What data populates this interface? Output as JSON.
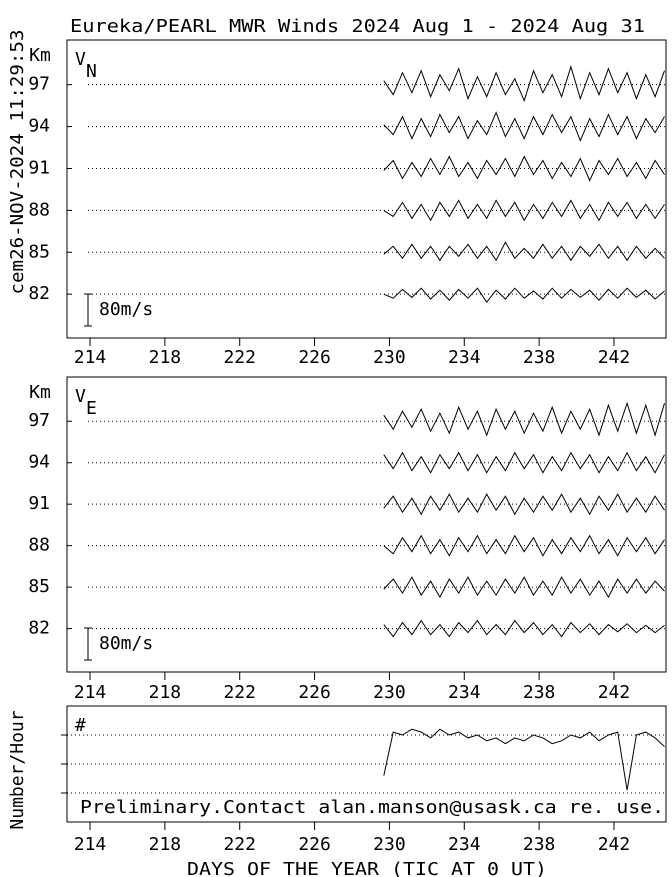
{
  "side_label": "cem26-NOV-2024 11:29:53",
  "chart_data": [
    {
      "type": "line",
      "title": "Eureka/PEARL MWR Winds 2024 Aug  1 - 2024 Aug 31",
      "ylabel": "Km",
      "panel_label": "V",
      "panel_label_sub": "N",
      "xlim": [
        212.77,
        244.78
      ],
      "xticks": [
        214,
        218,
        222,
        226,
        230,
        234,
        238,
        242
      ],
      "ylim": [
        78.86,
        100.2
      ],
      "yticks": [
        82,
        85,
        88,
        91,
        94,
        97
      ],
      "grid": true,
      "scale_bar": {
        "value": 80,
        "label": "80m/s"
      },
      "x": [
        229.7,
        230.2,
        230.7,
        231.2,
        231.7,
        232.2,
        232.7,
        233.2,
        233.7,
        234.2,
        234.7,
        235.2,
        235.7,
        236.2,
        236.7,
        237.2,
        237.7,
        238.2,
        238.7,
        239.2,
        239.7,
        240.2,
        240.7,
        241.2,
        241.7,
        242.2,
        242.7,
        243.2,
        243.7,
        244.2,
        244.7
      ],
      "series": [
        {
          "baseline": 97,
          "color": "#000000",
          "values": [
            10,
            -25,
            30,
            -20,
            35,
            -30,
            25,
            -15,
            40,
            -35,
            20,
            -30,
            30,
            -25,
            15,
            -40,
            35,
            -20,
            25,
            -30,
            45,
            -35,
            30,
            -25,
            40,
            -20,
            30,
            -35,
            25,
            -30,
            35
          ]
        },
        {
          "baseline": 94,
          "color": "#000000",
          "values": [
            5,
            -20,
            25,
            -30,
            20,
            -25,
            30,
            -15,
            25,
            -30,
            15,
            -20,
            35,
            -25,
            20,
            -30,
            25,
            -20,
            30,
            -15,
            25,
            -35,
            20,
            -25,
            30,
            -20,
            25,
            -30,
            20,
            -15,
            25
          ]
        },
        {
          "baseline": 91,
          "color": "#000000",
          "values": [
            -5,
            20,
            -25,
            15,
            -20,
            25,
            -15,
            30,
            -20,
            15,
            -25,
            20,
            -15,
            25,
            -20,
            30,
            -15,
            20,
            -25,
            15,
            -20,
            25,
            -30,
            20,
            -15,
            25,
            -20,
            15,
            -25,
            20,
            -15
          ]
        },
        {
          "baseline": 88,
          "color": "#000000",
          "values": [
            0,
            -15,
            20,
            -20,
            15,
            -25,
            20,
            -15,
            25,
            -20,
            15,
            -20,
            25,
            -15,
            20,
            -25,
            15,
            -20,
            20,
            -15,
            25,
            -20,
            15,
            -25,
            20,
            -15,
            20,
            -20,
            15,
            -20,
            15
          ]
        },
        {
          "baseline": 85,
          "color": "#000000",
          "values": [
            -5,
            15,
            -15,
            20,
            -15,
            15,
            -20,
            15,
            -10,
            20,
            -15,
            15,
            -20,
            25,
            -15,
            10,
            -15,
            20,
            -15,
            15,
            -20,
            15,
            -10,
            20,
            -15,
            15,
            -20,
            15,
            -15,
            10,
            -15
          ]
        },
        {
          "baseline": 82,
          "color": "#000000",
          "values": [
            0,
            -10,
            12,
            -8,
            15,
            -12,
            10,
            -15,
            12,
            -10,
            15,
            -20,
            10,
            -12,
            15,
            -10,
            8,
            -12,
            15,
            -10,
            12,
            -8,
            10,
            -15,
            12,
            -10,
            15,
            -8,
            10,
            -12,
            8
          ]
        }
      ]
    },
    {
      "type": "line",
      "ylabel": "Km",
      "panel_label": "V",
      "panel_label_sub": "E",
      "xlim": [
        212.77,
        244.78
      ],
      "xticks": [
        214,
        218,
        222,
        226,
        230,
        234,
        238,
        242
      ],
      "ylim": [
        78.86,
        100.2
      ],
      "yticks": [
        82,
        85,
        88,
        91,
        94,
        97
      ],
      "grid": true,
      "scale_bar": {
        "value": 80,
        "label": "80m/s"
      },
      "x": [
        229.7,
        230.2,
        230.7,
        231.2,
        231.7,
        232.2,
        232.7,
        233.2,
        233.7,
        234.2,
        234.7,
        235.2,
        235.7,
        236.2,
        236.7,
        237.2,
        237.7,
        238.2,
        238.7,
        239.2,
        239.7,
        240.2,
        240.7,
        241.2,
        241.7,
        242.2,
        242.7,
        243.2,
        243.7,
        244.2,
        244.7
      ],
      "series": [
        {
          "baseline": 97,
          "color": "#000000",
          "values": [
            15,
            -20,
            25,
            -15,
            30,
            -25,
            20,
            -30,
            35,
            -20,
            25,
            -35,
            30,
            -20,
            25,
            -30,
            20,
            -25,
            35,
            -30,
            25,
            -20,
            30,
            -35,
            40,
            -25,
            45,
            -30,
            40,
            -35,
            45
          ]
        },
        {
          "baseline": 94,
          "color": "#000000",
          "values": [
            20,
            -15,
            25,
            -20,
            15,
            -25,
            20,
            -15,
            25,
            -20,
            20,
            -25,
            15,
            -20,
            25,
            -15,
            20,
            -25,
            15,
            -20,
            25,
            -15,
            20,
            -25,
            15,
            -20,
            25,
            -20,
            15,
            -25,
            20
          ]
        },
        {
          "baseline": 91,
          "color": "#000000",
          "values": [
            -10,
            20,
            -20,
            15,
            -25,
            20,
            -15,
            25,
            -20,
            15,
            -20,
            25,
            -15,
            20,
            -25,
            15,
            -20,
            20,
            -15,
            25,
            -20,
            15,
            -25,
            20,
            -15,
            25,
            -20,
            15,
            -20,
            20,
            -15
          ]
        },
        {
          "baseline": 88,
          "color": "#000000",
          "values": [
            0,
            -20,
            20,
            -15,
            25,
            -20,
            15,
            -25,
            20,
            -15,
            25,
            -20,
            15,
            -20,
            25,
            -15,
            20,
            -25,
            15,
            -20,
            20,
            -15,
            25,
            -20,
            15,
            -25,
            20,
            -15,
            20,
            -20,
            15
          ]
        },
        {
          "baseline": 85,
          "color": "#000000",
          "values": [
            -5,
            20,
            -15,
            25,
            -20,
            15,
            -25,
            20,
            -15,
            25,
            -20,
            15,
            -20,
            20,
            -15,
            25,
            -20,
            15,
            -20,
            25,
            -15,
            20,
            -20,
            15,
            -25,
            20,
            -15,
            20,
            -15,
            15,
            -10
          ]
        },
        {
          "baseline": 82,
          "color": "#000000",
          "values": [
            10,
            -20,
            15,
            -15,
            20,
            -15,
            10,
            -20,
            15,
            -10,
            20,
            -15,
            10,
            -15,
            20,
            -10,
            15,
            -15,
            10,
            -20,
            15,
            -10,
            12,
            -15,
            10,
            -8,
            12,
            -10,
            8,
            -10,
            8
          ]
        }
      ]
    },
    {
      "type": "line",
      "ylabel": "Number/Hour",
      "panel_label": "#",
      "xlabel": "DAYS OF THE YEAR (TIC AT 0 UT)",
      "annotation": "Preliminary.Contact alan.manson@usask.ca re. use.",
      "xlim": [
        212.77,
        244.78
      ],
      "xticks": [
        214,
        218,
        222,
        226,
        230,
        234,
        238,
        242
      ],
      "ylim": [
        0,
        4
      ],
      "ygrid": [
        1,
        2,
        3
      ],
      "grid": true,
      "x": [
        229.7,
        230.2,
        230.7,
        231.2,
        231.7,
        232.2,
        232.7,
        233.2,
        233.7,
        234.2,
        234.7,
        235.2,
        235.7,
        236.2,
        236.7,
        237.2,
        237.7,
        238.2,
        238.7,
        239.2,
        239.7,
        240.2,
        240.7,
        241.2,
        241.7,
        242.2,
        242.7,
        243.2,
        243.7,
        244.2,
        244.7
      ],
      "series": [
        {
          "color": "#000000",
          "values": [
            1.6,
            3.1,
            3.0,
            3.2,
            3.1,
            2.9,
            3.2,
            3.0,
            3.1,
            2.9,
            3.0,
            2.8,
            2.9,
            2.7,
            2.9,
            2.8,
            3.0,
            2.9,
            2.7,
            2.8,
            3.0,
            2.9,
            3.1,
            2.8,
            3.0,
            3.1,
            1.1,
            3.0,
            3.1,
            2.9,
            2.6
          ]
        }
      ]
    }
  ]
}
